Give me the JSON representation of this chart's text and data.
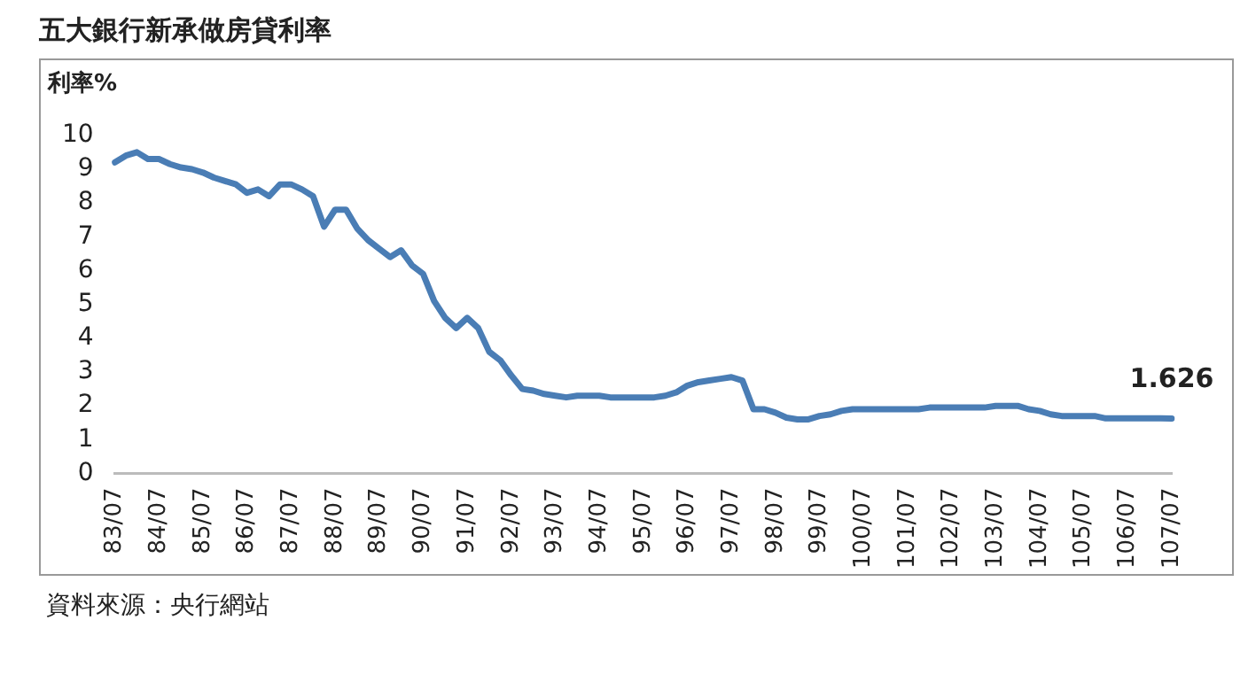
{
  "chart_data": {
    "type": "line",
    "title": "五大銀行新承做房貸利率",
    "ylabel": "利率%",
    "categories": [
      "83/07",
      null,
      null,
      null,
      "84/07",
      null,
      null,
      null,
      "85/07",
      null,
      null,
      null,
      "86/07",
      null,
      null,
      null,
      "87/07",
      null,
      null,
      null,
      "88/07",
      null,
      null,
      null,
      "89/07",
      null,
      null,
      null,
      "90/07",
      null,
      null,
      null,
      "91/07",
      null,
      null,
      null,
      "92/07",
      null,
      null,
      null,
      "93/07",
      null,
      null,
      null,
      "94/07",
      null,
      null,
      null,
      "95/07",
      null,
      null,
      null,
      "96/07",
      null,
      null,
      null,
      "97/07",
      null,
      null,
      null,
      "98/07",
      null,
      null,
      null,
      "99/07",
      null,
      null,
      null,
      "100/07",
      null,
      null,
      null,
      "101/07",
      null,
      null,
      null,
      "102/07",
      null,
      null,
      null,
      "103/07",
      null,
      null,
      null,
      "104/07",
      null,
      null,
      null,
      "105/07",
      null,
      null,
      null,
      "106/07",
      null,
      null,
      null,
      "107/07"
    ],
    "series": [
      {
        "color": "#4a7db5",
        "values": [
          9.2,
          9.4,
          9.5,
          9.3,
          9.3,
          9.15,
          9.05,
          9.0,
          8.9,
          8.75,
          8.65,
          8.55,
          8.3,
          8.4,
          8.2,
          8.55,
          8.55,
          8.4,
          8.2,
          7.3,
          7.8,
          7.8,
          7.25,
          6.9,
          6.65,
          6.4,
          6.6,
          6.15,
          5.9,
          5.1,
          4.6,
          4.3,
          4.6,
          4.3,
          3.6,
          3.35,
          2.9,
          2.5,
          2.45,
          2.35,
          2.3,
          2.25,
          2.3,
          2.3,
          2.3,
          2.25,
          2.25,
          2.25,
          2.25,
          2.25,
          2.3,
          2.4,
          2.6,
          2.7,
          2.75,
          2.8,
          2.85,
          2.75,
          1.9,
          1.9,
          1.8,
          1.65,
          1.6,
          1.6,
          1.7,
          1.75,
          1.85,
          1.9,
          1.9,
          1.9,
          1.9,
          1.9,
          1.9,
          1.9,
          1.95,
          1.95,
          1.95,
          1.95,
          1.95,
          1.95,
          2.0,
          2.0,
          2.0,
          1.9,
          1.85,
          1.75,
          1.7,
          1.7,
          1.7,
          1.7,
          1.63,
          1.63,
          1.63,
          1.63,
          1.63,
          1.63,
          1.626
        ]
      }
    ],
    "ylim": [
      0,
      10
    ],
    "yticks": [
      0,
      1,
      2,
      3,
      4,
      5,
      6,
      7,
      8,
      9,
      10
    ],
    "grid": false,
    "legend": false,
    "marker": "none",
    "line_style": "solid",
    "annotations": [
      {
        "text": "1.626",
        "x": "107/07",
        "y": 1.626
      },
      "資料來源：央行網站"
    ]
  }
}
